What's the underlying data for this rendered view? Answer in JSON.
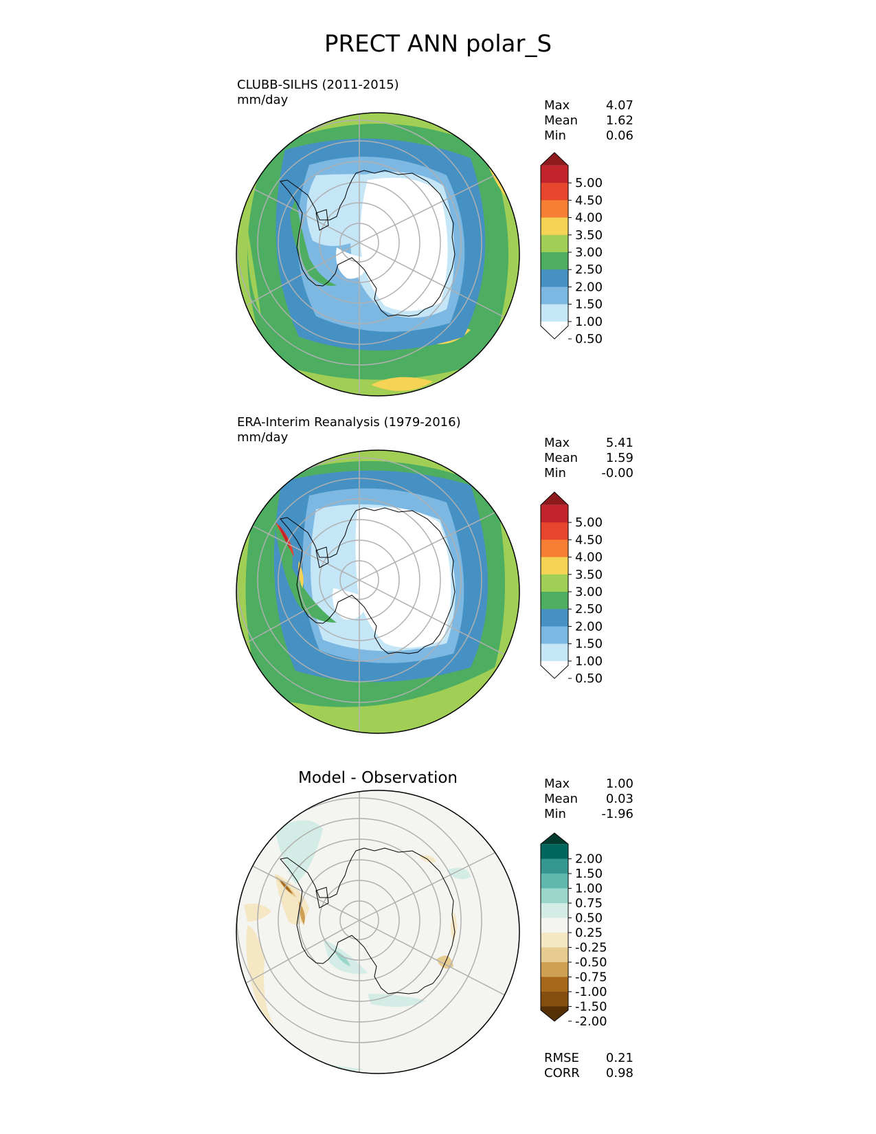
{
  "title": "PRECT ANN polar_S",
  "panels": [
    {
      "id": "test",
      "title": "CLUBB-SILHS (2011-2015)",
      "units": "mm/day",
      "stats": [
        {
          "label": "Max",
          "value": "4.07"
        },
        {
          "label": "Mean",
          "value": "1.62"
        },
        {
          "label": "Min",
          "value": "0.06"
        }
      ],
      "colorbar": {
        "ticks": [
          "5.00",
          "4.50",
          "4.00",
          "3.50",
          "3.00",
          "2.50",
          "2.00",
          "1.50",
          "1.00",
          "0.50"
        ],
        "colors": [
          "#8e1a1d",
          "#c1242a",
          "#e6452e",
          "#f67f34",
          "#f6d354",
          "#a1cf55",
          "#4dae62",
          "#4691c3",
          "#7db8e3",
          "#c4e6f7",
          "#ffffff"
        ]
      }
    },
    {
      "id": "ref",
      "title": "ERA-Interim Reanalysis (1979-2016)",
      "units": "mm/day",
      "stats": [
        {
          "label": "Max",
          "value": "5.41"
        },
        {
          "label": "Mean",
          "value": "1.59"
        },
        {
          "label": "Min",
          "value": "-0.00"
        }
      ],
      "colorbar": {
        "ticks": [
          "5.00",
          "4.50",
          "4.00",
          "3.50",
          "3.00",
          "2.50",
          "2.00",
          "1.50",
          "1.00",
          "0.50"
        ],
        "colors": [
          "#8e1a1d",
          "#c1242a",
          "#e6452e",
          "#f67f34",
          "#f6d354",
          "#a1cf55",
          "#4dae62",
          "#4691c3",
          "#7db8e3",
          "#c4e6f7",
          "#ffffff"
        ]
      }
    },
    {
      "id": "diff",
      "title": "Model - Observation",
      "stats": [
        {
          "label": "Max",
          "value": "1.00"
        },
        {
          "label": "Mean",
          "value": "0.03"
        },
        {
          "label": "Min",
          "value": "-1.96"
        }
      ],
      "metrics": [
        {
          "label": "RMSE",
          "value": "0.21"
        },
        {
          "label": "CORR",
          "value": "0.98"
        }
      ],
      "colorbar": {
        "ticks": [
          "2.00",
          "1.50",
          "1.00",
          "0.75",
          "0.50",
          "0.25",
          "-0.25",
          "-0.50",
          "-0.75",
          "-1.00",
          "-1.50",
          "-2.00"
        ],
        "colors": [
          "#023c30",
          "#01665e",
          "#35978f",
          "#5fb8ad",
          "#9bd6cb",
          "#d3ece6",
          "#f4f4f1",
          "#f6e7c4",
          "#e6cc91",
          "#cf9f54",
          "#a8681c",
          "#844e0f",
          "#543005"
        ]
      }
    }
  ]
}
